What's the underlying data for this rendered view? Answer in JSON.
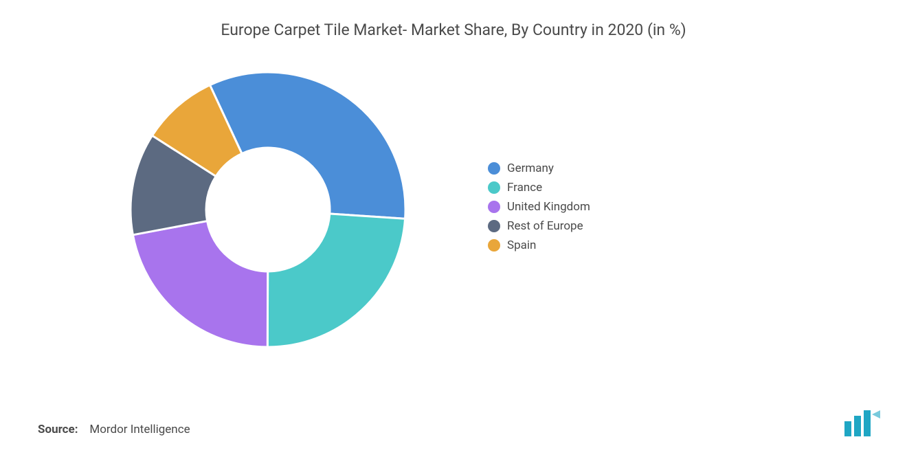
{
  "title": "Europe Carpet Tile Market- Market Share, By Country in 2020 (in %)",
  "source_label": "Source:",
  "source_value": "Mordor Intelligence",
  "chart": {
    "type": "donut",
    "inner_radius_ratio": 0.45,
    "background_color": "#ffffff",
    "gap_color": "#ffffff",
    "gap_width": 3,
    "start_angle_deg": -25,
    "series": [
      {
        "label": "Germany",
        "value": 33,
        "color": "#4b8ed8"
      },
      {
        "label": "France",
        "value": 24,
        "color": "#4bc9c9"
      },
      {
        "label": "United Kingdom",
        "value": 22,
        "color": "#a874ed"
      },
      {
        "label": "Rest of Europe",
        "value": 12,
        "color": "#5c6a81"
      },
      {
        "label": "Spain",
        "value": 9,
        "color": "#e9a63a"
      }
    ]
  },
  "legend": {
    "font_size": 17,
    "text_color": "#4a4a4a",
    "swatch_shape": "circle"
  },
  "logo": {
    "bar_color": "#1fa6c4",
    "accent_color": "#1fa6c4"
  }
}
